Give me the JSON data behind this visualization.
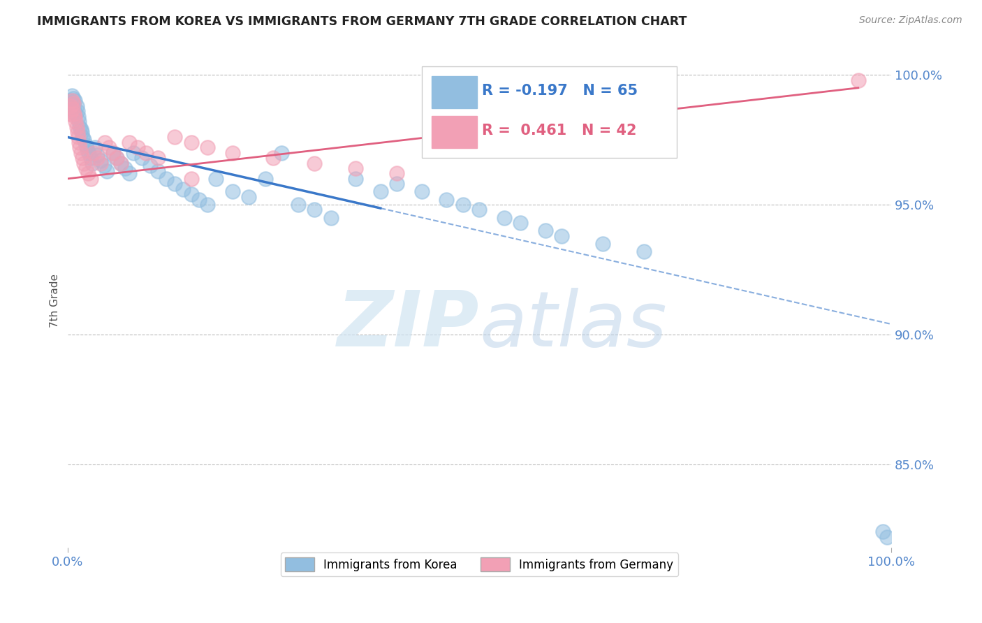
{
  "title": "IMMIGRANTS FROM KOREA VS IMMIGRANTS FROM GERMANY 7TH GRADE CORRELATION CHART",
  "source": "Source: ZipAtlas.com",
  "ylabel": "7th Grade",
  "xlim": [
    0.0,
    1.0
  ],
  "ylim": [
    0.818,
    1.008
  ],
  "yticks": [
    0.85,
    0.9,
    0.95,
    1.0
  ],
  "ytick_labels": [
    "85.0%",
    "90.0%",
    "95.0%",
    "100.0%"
  ],
  "korea_R": -0.197,
  "korea_N": 65,
  "germany_R": 0.461,
  "germany_N": 42,
  "korea_color": "#92BEE0",
  "germany_color": "#F2A0B5",
  "korea_line_color": "#3A78C9",
  "germany_line_color": "#E06080",
  "legend_label_korea": "Immigrants from Korea",
  "legend_label_germany": "Immigrants from Germany",
  "watermark": "ZIPatlas",
  "watermark_color": "#D0E4F2",
  "korea_x": [
    0.003,
    0.004,
    0.005,
    0.006,
    0.007,
    0.008,
    0.009,
    0.01,
    0.011,
    0.012,
    0.013,
    0.014,
    0.015,
    0.016,
    0.017,
    0.018,
    0.02,
    0.022,
    0.024,
    0.026,
    0.028,
    0.03,
    0.033,
    0.036,
    0.04,
    0.044,
    0.048,
    0.055,
    0.06,
    0.065,
    0.07,
    0.075,
    0.08,
    0.09,
    0.1,
    0.11,
    0.12,
    0.13,
    0.14,
    0.15,
    0.16,
    0.17,
    0.18,
    0.2,
    0.22,
    0.24,
    0.26,
    0.28,
    0.3,
    0.32,
    0.35,
    0.38,
    0.4,
    0.43,
    0.46,
    0.48,
    0.5,
    0.53,
    0.55,
    0.58,
    0.6,
    0.65,
    0.7,
    0.99,
    0.995
  ],
  "korea_y": [
    0.99,
    0.988,
    0.992,
    0.989,
    0.991,
    0.987,
    0.99,
    0.985,
    0.988,
    0.986,
    0.984,
    0.982,
    0.98,
    0.979,
    0.978,
    0.976,
    0.975,
    0.973,
    0.971,
    0.97,
    0.968,
    0.966,
    0.972,
    0.969,
    0.967,
    0.965,
    0.963,
    0.97,
    0.968,
    0.966,
    0.964,
    0.962,
    0.97,
    0.968,
    0.965,
    0.963,
    0.96,
    0.958,
    0.956,
    0.954,
    0.952,
    0.95,
    0.96,
    0.955,
    0.953,
    0.96,
    0.97,
    0.95,
    0.948,
    0.945,
    0.96,
    0.955,
    0.958,
    0.955,
    0.952,
    0.95,
    0.948,
    0.945,
    0.943,
    0.94,
    0.938,
    0.935,
    0.932,
    0.824,
    0.822
  ],
  "germany_x": [
    0.003,
    0.004,
    0.005,
    0.006,
    0.007,
    0.008,
    0.009,
    0.01,
    0.011,
    0.012,
    0.013,
    0.014,
    0.015,
    0.016,
    0.018,
    0.02,
    0.022,
    0.025,
    0.028,
    0.032,
    0.036,
    0.04,
    0.045,
    0.05,
    0.055,
    0.06,
    0.065,
    0.075,
    0.085,
    0.095,
    0.11,
    0.13,
    0.15,
    0.17,
    0.2,
    0.25,
    0.3,
    0.35,
    0.4,
    0.15,
    0.7,
    0.96
  ],
  "germany_y": [
    0.985,
    0.988,
    0.99,
    0.987,
    0.989,
    0.985,
    0.984,
    0.982,
    0.98,
    0.978,
    0.976,
    0.974,
    0.972,
    0.97,
    0.968,
    0.966,
    0.964,
    0.962,
    0.96,
    0.97,
    0.968,
    0.966,
    0.974,
    0.972,
    0.97,
    0.968,
    0.966,
    0.974,
    0.972,
    0.97,
    0.968,
    0.976,
    0.974,
    0.972,
    0.97,
    0.968,
    0.966,
    0.964,
    0.962,
    0.96,
    0.999,
    0.998
  ],
  "korea_line_x0": 0.0,
  "korea_line_x1": 1.0,
  "korea_line_y0": 0.976,
  "korea_line_y1": 0.904,
  "korea_line_solid_end": 0.38,
  "germany_line_x0": 0.0,
  "germany_line_x1": 0.96,
  "germany_line_y0": 0.96,
  "germany_line_y1": 0.995
}
